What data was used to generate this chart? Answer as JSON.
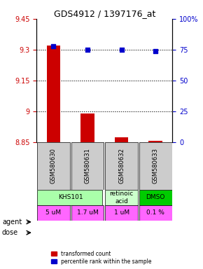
{
  "title": "GDS4912 / 1397176_at",
  "samples": [
    "GSM580630",
    "GSM580631",
    "GSM580632",
    "GSM580633"
  ],
  "bar_values": [
    9.32,
    8.99,
    8.875,
    8.856
  ],
  "bar_base": 8.85,
  "blue_values": [
    78,
    75,
    75,
    74
  ],
  "ylim_left": [
    8.85,
    9.45
  ],
  "ylim_right": [
    0,
    100
  ],
  "yticks_left": [
    8.85,
    9.0,
    9.15,
    9.3,
    9.45
  ],
  "ytick_labels_left": [
    "8.85",
    "9",
    "9.15",
    "9.3",
    "9.45"
  ],
  "yticks_right": [
    0,
    25,
    50,
    75,
    100
  ],
  "ytick_labels_right": [
    "0",
    "25",
    "50",
    "75",
    "100%"
  ],
  "hlines": [
    9.0,
    9.15,
    9.3
  ],
  "bar_color": "#cc0000",
  "blue_color": "#0000cc",
  "agent_spans": [
    [
      0,
      2,
      "KHS101"
    ],
    [
      2,
      3,
      "retinoic\nacid"
    ],
    [
      3,
      4,
      "DMSO"
    ]
  ],
  "agent_bg": [
    "#aaffaa",
    "#ccffcc",
    "#00cc00"
  ],
  "dose_labels": [
    "5 uM",
    "1.7 uM",
    "1 uM",
    "0.1 %"
  ],
  "dose_color": "#ff66ff",
  "sample_bg": "#cccccc",
  "legend_bar_label": "transformed count",
  "legend_blue_label": "percentile rank within the sample"
}
